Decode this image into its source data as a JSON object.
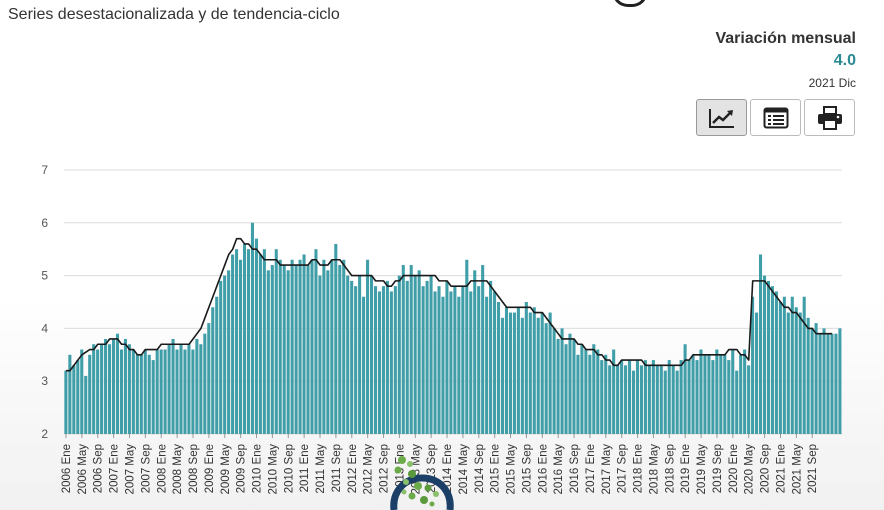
{
  "header": {
    "subtitle": "Series desestacionalizada y de tendencia-ciclo"
  },
  "summary": {
    "title": "Variación mensual",
    "value": "4.0",
    "period": "2021 Dic",
    "value_color": "#2b8a93"
  },
  "toolbar": {
    "buttons": [
      {
        "name": "line-chart-icon",
        "active": true
      },
      {
        "name": "table-list-icon",
        "active": false
      },
      {
        "name": "printer-icon",
        "active": false
      }
    ]
  },
  "colors": {
    "bars": "#3f9ea8",
    "trend": "#1a1a1a",
    "grid": "#dcdcdc"
  },
  "chart_data": {
    "type": "bar",
    "overlay": "line",
    "ylim": [
      2,
      7
    ],
    "y_ticks": [
      2,
      3,
      4,
      5,
      6,
      7
    ],
    "grid": true,
    "x_start": "2006-01",
    "x_labels": [
      "2006 Ene",
      "2006 May",
      "2006 Sep",
      "2007 Ene",
      "2007 May",
      "2007 Sep",
      "2008 Ene",
      "2008 May",
      "2008 Sep",
      "2009 Ene",
      "2009 May",
      "2009 Sep",
      "2010 Ene",
      "2010 May",
      "2010 Sep",
      "2011 Ene",
      "2011 May",
      "2011 Sep",
      "2012 Ene",
      "2012 May",
      "2012 Sep",
      "2013 Ene",
      "2013 May",
      "2013 Sep",
      "2014 Ene",
      "2014 May",
      "2014 Sep",
      "2015 Ene",
      "2015 May",
      "2015 Sep",
      "2016 Ene",
      "2016 May",
      "2016 Sep",
      "2017 Ene",
      "2017 May",
      "2017 Sep",
      "2018 Ene",
      "2018 May",
      "2018 Sep",
      "2019 Ene",
      "2019 May",
      "2019 Sep",
      "2020 Ene",
      "2020 May",
      "2020 Sep",
      "2021 Ene",
      "2021 May",
      "2021 Sep"
    ],
    "series": [
      {
        "values": [
          3.2,
          3.5,
          3.3,
          3.4,
          3.6,
          3.1,
          3.5,
          3.7,
          3.6,
          3.7,
          3.8,
          3.7,
          3.8,
          3.9,
          3.6,
          3.8,
          3.7,
          3.6,
          3.5,
          3.5,
          3.6,
          3.5,
          3.4,
          3.6,
          3.6,
          3.6,
          3.7,
          3.8,
          3.6,
          3.7,
          3.6,
          3.7,
          3.6,
          3.8,
          3.7,
          3.9,
          4.1,
          4.4,
          4.6,
          4.9,
          5.0,
          5.1,
          5.4,
          5.5,
          5.3,
          5.6,
          5.5,
          6.0,
          5.7,
          5.4,
          5.5,
          5.1,
          5.2,
          5.5,
          5.3,
          5.2,
          5.1,
          5.3,
          5.2,
          5.3,
          5.4,
          5.2,
          5.3,
          5.5,
          5.0,
          5.3,
          5.1,
          5.3,
          5.6,
          5.2,
          5.3,
          5.0,
          4.9,
          4.8,
          5.0,
          4.6,
          5.3,
          5.0,
          4.8,
          4.7,
          4.8,
          4.9,
          4.7,
          4.8,
          5.0,
          5.2,
          4.9,
          5.2,
          5.0,
          5.1,
          4.8,
          4.9,
          5.0,
          4.7,
          4.8,
          4.6,
          4.9,
          4.7,
          4.8,
          4.6,
          4.8,
          5.3,
          4.7,
          5.1,
          4.8,
          5.2,
          4.6,
          4.9,
          4.7,
          4.5,
          4.2,
          4.4,
          4.3,
          4.3,
          4.4,
          4.2,
          4.5,
          4.3,
          4.4,
          4.2,
          4.3,
          4.1,
          4.3,
          4.0,
          3.8,
          4.0,
          3.7,
          3.9,
          3.8,
          3.5,
          3.7,
          3.6,
          3.5,
          3.7,
          3.6,
          3.4,
          3.5,
          3.3,
          3.6,
          3.3,
          3.4,
          3.3,
          3.4,
          3.2,
          3.4,
          3.3,
          3.4,
          3.3,
          3.4,
          3.3,
          3.3,
          3.2,
          3.4,
          3.3,
          3.2,
          3.4,
          3.7,
          3.4,
          3.5,
          3.4,
          3.6,
          3.5,
          3.5,
          3.4,
          3.6,
          3.5,
          3.5,
          3.4,
          3.6,
          3.2,
          3.5,
          3.6,
          3.3,
          4.6,
          4.3,
          5.4,
          5.0,
          4.9,
          4.8,
          4.7,
          4.5,
          4.6,
          4.3,
          4.6,
          4.4,
          4.3,
          4.6,
          4.2,
          4.0,
          4.1,
          3.9,
          4.0,
          3.9,
          3.9,
          3.9,
          4.0
        ]
      },
      {
        "values": [
          3.2,
          3.2,
          3.3,
          3.4,
          3.5,
          3.55,
          3.6,
          3.6,
          3.7,
          3.7,
          3.7,
          3.8,
          3.8,
          3.8,
          3.7,
          3.7,
          3.6,
          3.6,
          3.5,
          3.5,
          3.6,
          3.6,
          3.6,
          3.6,
          3.7,
          3.7,
          3.7,
          3.7,
          3.7,
          3.7,
          3.7,
          3.7,
          3.8,
          3.9,
          4.0,
          4.2,
          4.4,
          4.6,
          4.8,
          5.0,
          5.2,
          5.4,
          5.5,
          5.7,
          5.7,
          5.6,
          5.6,
          5.5,
          5.5,
          5.4,
          5.3,
          5.3,
          5.3,
          5.3,
          5.2,
          5.2,
          5.2,
          5.2,
          5.2,
          5.2,
          5.2,
          5.2,
          5.3,
          5.3,
          5.2,
          5.2,
          5.2,
          5.3,
          5.3,
          5.3,
          5.2,
          5.1,
          5.0,
          5.0,
          5.0,
          5.0,
          5.0,
          5.0,
          4.9,
          4.9,
          4.9,
          4.8,
          4.8,
          4.9,
          4.9,
          5.0,
          5.0,
          5.0,
          5.0,
          5.0,
          5.0,
          5.0,
          5.0,
          5.0,
          4.9,
          4.9,
          4.9,
          4.8,
          4.8,
          4.8,
          4.8,
          4.8,
          4.9,
          4.9,
          4.9,
          4.9,
          4.9,
          4.8,
          4.7,
          4.6,
          4.5,
          4.4,
          4.4,
          4.4,
          4.4,
          4.4,
          4.4,
          4.4,
          4.3,
          4.3,
          4.3,
          4.2,
          4.1,
          4.0,
          3.9,
          3.8,
          3.8,
          3.8,
          3.8,
          3.7,
          3.7,
          3.6,
          3.6,
          3.6,
          3.5,
          3.5,
          3.4,
          3.4,
          3.3,
          3.3,
          3.4,
          3.4,
          3.4,
          3.4,
          3.4,
          3.4,
          3.3,
          3.3,
          3.3,
          3.3,
          3.3,
          3.3,
          3.3,
          3.3,
          3.3,
          3.3,
          3.4,
          3.4,
          3.5,
          3.5,
          3.5,
          3.5,
          3.5,
          3.5,
          3.5,
          3.5,
          3.5,
          3.6,
          3.6,
          3.6,
          3.5,
          3.5,
          3.4,
          4.9,
          4.9,
          4.9,
          4.9,
          4.8,
          4.7,
          4.6,
          4.5,
          4.4,
          4.4,
          4.3,
          4.3,
          4.2,
          4.1,
          4.0,
          4.0,
          3.9,
          3.9,
          3.9,
          3.9,
          3.9
        ]
      }
    ]
  }
}
